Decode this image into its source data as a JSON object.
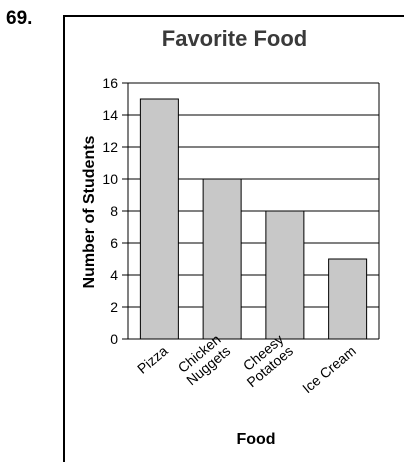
{
  "problem_number": "69.",
  "chart_data": {
    "type": "bar",
    "title": "Favorite Food",
    "xlabel": "Food",
    "ylabel": "Number of Students",
    "categories": [
      [
        "Pizza"
      ],
      [
        "Chicken",
        "Nuggets"
      ],
      [
        "Cheesy",
        "Potatoes"
      ],
      [
        "Ice Cream"
      ]
    ],
    "values": [
      15,
      10,
      8,
      5
    ],
    "ylim": [
      0,
      16
    ],
    "yticks": [
      "0",
      "2",
      "4",
      "6",
      "8",
      "10",
      "12",
      "14",
      "16"
    ],
    "grid": true,
    "bar_color": "#c8c8c8"
  }
}
